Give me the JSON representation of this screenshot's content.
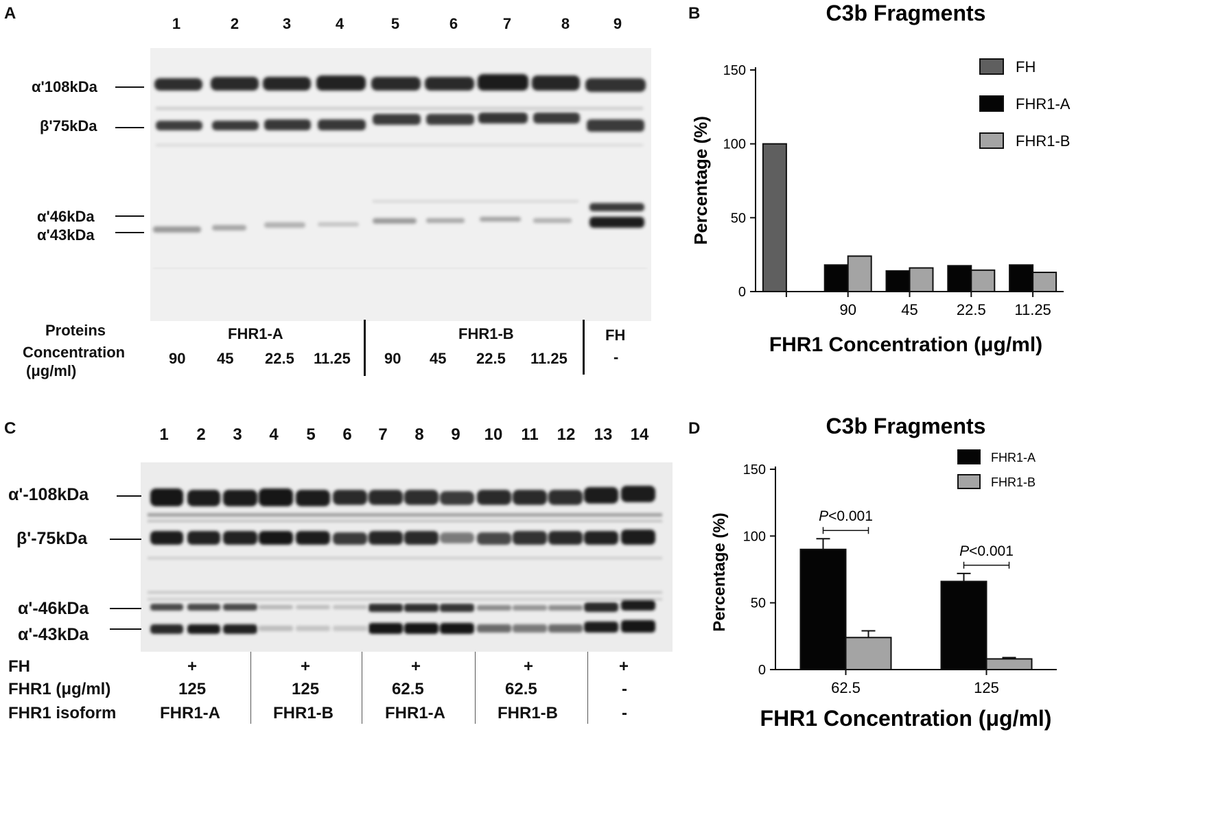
{
  "panel_a": {
    "letter": "A",
    "lanes": [
      "1",
      "2",
      "3",
      "4",
      "5",
      "6",
      "7",
      "8",
      "9"
    ],
    "bands": [
      "α'108kDa",
      "β'75kDa",
      "α'46kDa",
      "α'43kDa"
    ],
    "proteins_label": "Proteins",
    "concentration_label": "Concentration",
    "unit_label": "(μg/ml)",
    "groups": [
      "FHR1-A",
      "FHR1-B",
      "FH"
    ],
    "concentrations": [
      "90",
      "45",
      "22.5",
      "11.25",
      "90",
      "45",
      "22.5",
      "11.25",
      "-"
    ]
  },
  "panel_b": {
    "letter": "B"
  },
  "panel_c": {
    "letter": "C",
    "lanes": [
      "1",
      "2",
      "3",
      "4",
      "5",
      "6",
      "7",
      "8",
      "9",
      "10",
      "11",
      "12",
      "13",
      "14"
    ],
    "bands": [
      "α'-108kDa",
      "β'-75kDa",
      "α'-46kDa",
      "α'-43kDa"
    ],
    "row_labels": [
      "FH",
      "FHR1 (μg/ml)",
      "FHR1 isoform"
    ],
    "fh_row": [
      "+",
      "+",
      "+",
      "+",
      "+"
    ],
    "fhr1_row": [
      "125",
      "125",
      "62.5",
      "62.5",
      "-"
    ],
    "isoform_row": [
      "FHR1-A",
      "FHR1-B",
      "FHR1-A",
      "FHR1-B",
      "-"
    ]
  },
  "panel_d": {
    "letter": "D"
  },
  "chart_data": [
    {
      "type": "bar",
      "title": "C3b Fragments",
      "xlabel": "FHR1 Concentration (μg/ml)",
      "ylabel": "Percentage (%)",
      "ylim": [
        0,
        150
      ],
      "yticks": [
        "0",
        "50",
        "100",
        "150"
      ],
      "categories": [
        "",
        "90",
        "45",
        "22.5",
        "11.25"
      ],
      "series": [
        {
          "name": "FH",
          "color": "#5f5f5f",
          "values": [
            100,
            null,
            null,
            null,
            null
          ]
        },
        {
          "name": "FHR1-A",
          "color": "#050505",
          "values": [
            null,
            18,
            14,
            17.5,
            18
          ]
        },
        {
          "name": "FHR1-B",
          "color": "#a4a4a4",
          "values": [
            null,
            24,
            16,
            14.5,
            13
          ]
        }
      ],
      "legend": "top-right"
    },
    {
      "type": "bar",
      "title": "C3b Fragments",
      "xlabel": "FHR1 Concentration (μg/ml)",
      "ylabel": "Percentage (%)",
      "ylim": [
        0,
        150
      ],
      "yticks": [
        "0",
        "50",
        "100",
        "150"
      ],
      "categories": [
        "62.5",
        "125"
      ],
      "series": [
        {
          "name": "FHR1-A",
          "color": "#050505",
          "values": [
            90,
            66
          ],
          "errors": [
            8,
            6
          ]
        },
        {
          "name": "FHR1-B",
          "color": "#a4a4a4",
          "values": [
            24,
            8
          ],
          "errors": [
            5,
            1
          ]
        }
      ],
      "annotations": [
        {
          "p_symbol": "P",
          "p_text": "<0.001"
        },
        {
          "p_symbol": "P",
          "p_text": "<0.001"
        }
      ],
      "legend": "top-right"
    }
  ]
}
